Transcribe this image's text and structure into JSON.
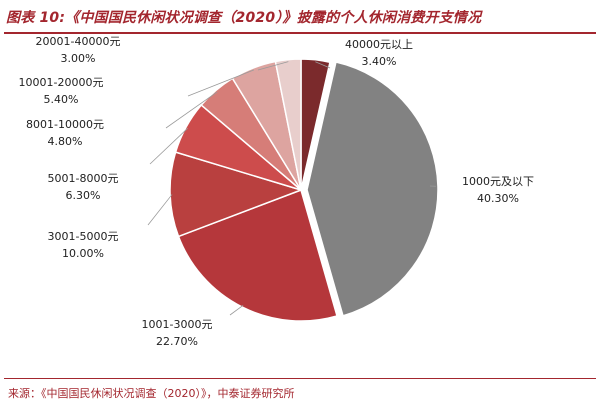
{
  "header": {
    "title": "图表 10:《中国国民休闲状况调查（2020）》披露的个人休闲消费开支情况"
  },
  "footer": {
    "source": "来源：《中国国民休闲状况调查（2020）》，中泰证券研究所"
  },
  "chart_data": {
    "type": "pie",
    "title": "",
    "unit": "%",
    "legend": "none",
    "slices": [
      {
        "label": "40000元以上",
        "value_label": "3.40%",
        "value": 3.4,
        "color": "#7b2a2c"
      },
      {
        "label": "1000元及以下",
        "value_label": "40.30%",
        "value": 40.3,
        "color": "#828282"
      },
      {
        "label": "1001-3000元",
        "value_label": "22.70%",
        "value": 22.7,
        "color": "#b5373b"
      },
      {
        "label": "3001-5000元",
        "value_label": "10.00%",
        "value": 10.0,
        "color": "#b9403f"
      },
      {
        "label": "5001-8000元",
        "value_label": "6.30%",
        "value": 6.3,
        "color": "#cd4c4c"
      },
      {
        "label": "8001-10000元",
        "value_label": "4.80%",
        "value": 4.8,
        "color": "#d67d78"
      },
      {
        "label": "10001-20000元",
        "value_label": "5.40%",
        "value": 5.4,
        "color": "#dda4a0"
      },
      {
        "label": "20001-40000元",
        "value_label": "3.00%",
        "value": 3.0,
        "color": "#e8cecc"
      }
    ]
  }
}
